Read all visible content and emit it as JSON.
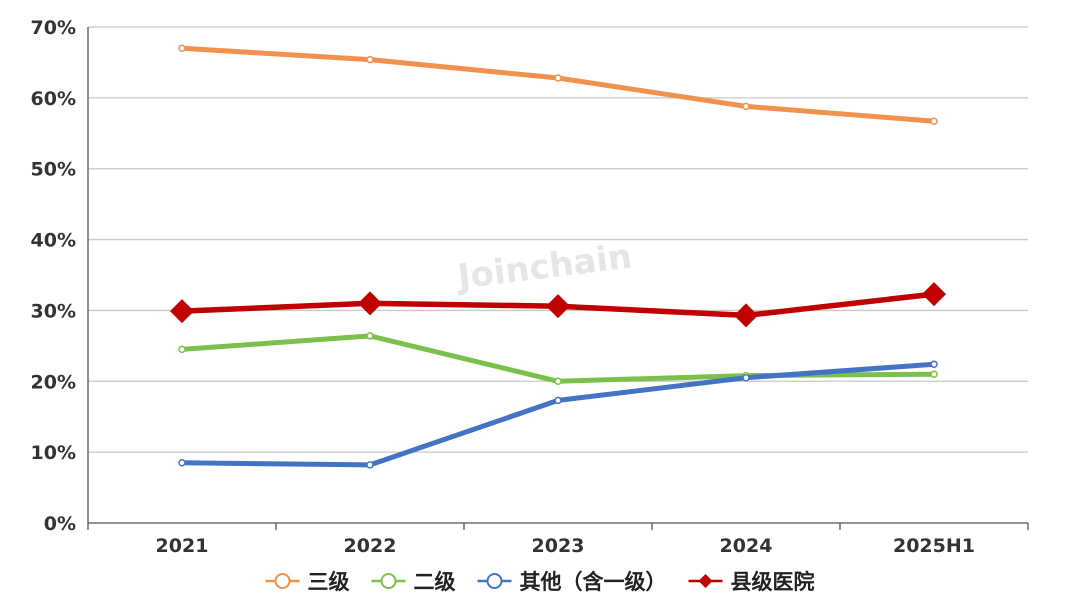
{
  "watermark": "Joinchain",
  "chart_data": {
    "type": "line",
    "title": "",
    "xlabel": "",
    "ylabel": "",
    "categories": [
      "2021",
      "2022",
      "2023",
      "2024",
      "2025H1"
    ],
    "ylim": [
      0,
      70
    ],
    "yticks": [
      0,
      10,
      20,
      30,
      40,
      50,
      60,
      70
    ],
    "ytick_labels": [
      "0%",
      "10%",
      "20%",
      "30%",
      "40%",
      "50%",
      "60%",
      "70%"
    ],
    "grid": true,
    "legend_position": "bottom",
    "series": [
      {
        "name": "三级",
        "values": [
          67.0,
          65.4,
          62.8,
          58.8,
          56.7
        ],
        "color": "#f0914e",
        "marker": "circle"
      },
      {
        "name": "二级",
        "values": [
          24.5,
          26.4,
          20.0,
          20.8,
          21.0
        ],
        "color": "#7cc04c",
        "marker": "circle"
      },
      {
        "name": "其他（含一级）",
        "values": [
          8.5,
          8.2,
          17.3,
          20.5,
          22.4
        ],
        "color": "#4472c4",
        "marker": "circle"
      },
      {
        "name": "县级医院",
        "values": [
          29.9,
          31.0,
          30.6,
          29.3,
          32.3
        ],
        "color": "#c00000",
        "marker": "diamond"
      }
    ]
  }
}
